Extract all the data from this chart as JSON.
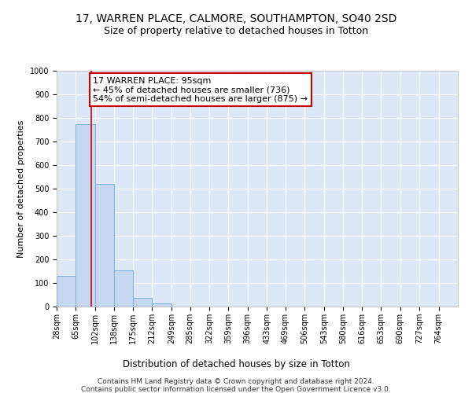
{
  "title": "17, WARREN PLACE, CALMORE, SOUTHAMPTON, SO40 2SD",
  "subtitle": "Size of property relative to detached houses in Totton",
  "xlabel": "Distribution of detached houses by size in Totton",
  "ylabel": "Number of detached properties",
  "footnote1": "Contains HM Land Registry data © Crown copyright and database right 2024.",
  "footnote2": "Contains public sector information licensed under the Open Government Licence v3.0.",
  "bar_edges": [
    28,
    65,
    102,
    138,
    175,
    212,
    249,
    285,
    322,
    359,
    396,
    433,
    469,
    506,
    543,
    580,
    616,
    653,
    690,
    727,
    764
  ],
  "bar_heights": [
    130,
    775,
    520,
    155,
    37,
    12,
    0,
    0,
    0,
    0,
    0,
    0,
    0,
    0,
    0,
    0,
    0,
    0,
    0,
    0
  ],
  "bar_color": "#c5d8f0",
  "bar_edgecolor": "#7aafd4",
  "property_size": 95,
  "property_line_color": "#cc0000",
  "annotation_line1": "17 WARREN PLACE: 95sqm",
  "annotation_line2": "← 45% of detached houses are smaller (736)",
  "annotation_line3": "54% of semi-detached houses are larger (875) →",
  "annotation_box_color": "#ffffff",
  "annotation_box_edgecolor": "#cc0000",
  "ylim": [
    0,
    1000
  ],
  "title_fontsize": 10,
  "subtitle_fontsize": 9,
  "xlabel_fontsize": 8.5,
  "ylabel_fontsize": 8,
  "annotation_fontsize": 8,
  "tick_fontsize": 7,
  "background_color": "#dce8f5",
  "grid_color": "#ffffff",
  "yticks": [
    0,
    100,
    200,
    300,
    400,
    500,
    600,
    700,
    800,
    900,
    1000
  ]
}
